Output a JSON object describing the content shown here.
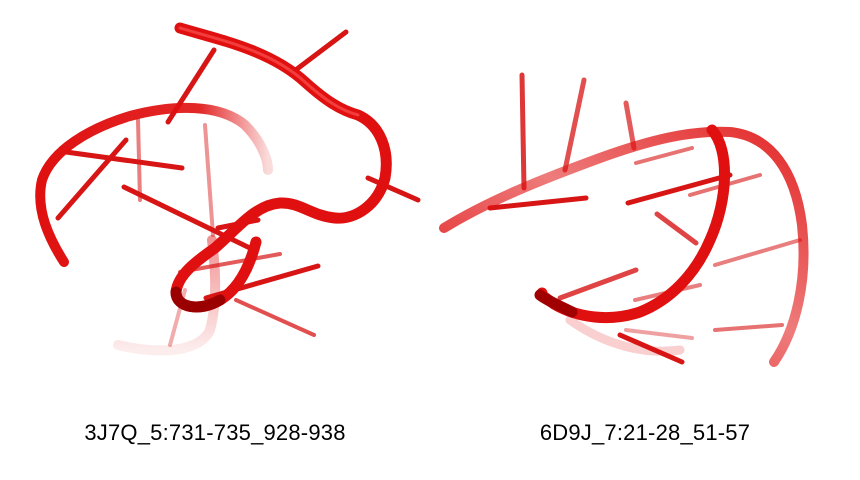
{
  "colors": {
    "backbone": "#e01010",
    "backbone_dark": "#a00000",
    "base": "#d81515",
    "background": "#ffffff"
  },
  "panels": [
    {
      "id": "left",
      "caption": "3J7Q_5:731-735_928-938"
    },
    {
      "id": "right",
      "caption": "6D9J_7:21-28_51-57"
    }
  ]
}
